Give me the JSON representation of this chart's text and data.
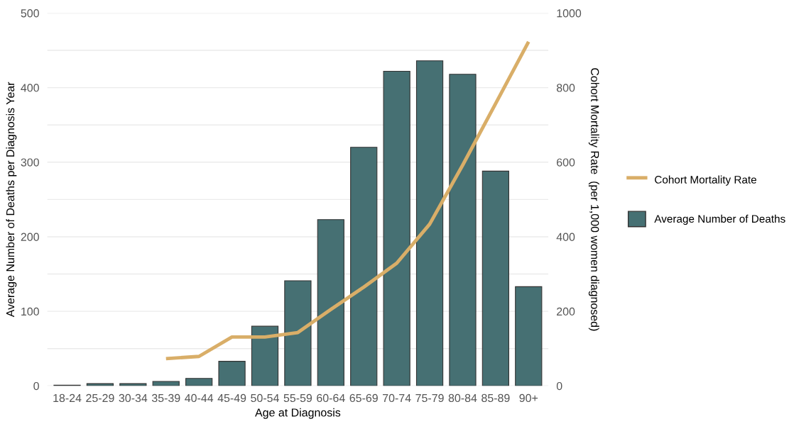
{
  "chart_data": {
    "type": "bar",
    "xlabel": "Age at Diagnosis",
    "ylabel": "Average Number of Deaths per Diagnosis Year",
    "y2label": "Cohort Mortality Rate  (per 1,000 women diagnosed)",
    "categories": [
      "18-24",
      "25-29",
      "30-34",
      "35-39",
      "40-44",
      "45-49",
      "50-54",
      "55-59",
      "60-64",
      "65-69",
      "70-74",
      "75-79",
      "80-84",
      "85-89",
      "90+"
    ],
    "series": [
      {
        "name": "Average Number of Deaths",
        "color": "#467073",
        "values": [
          1,
          3,
          3,
          6,
          10,
          33,
          80,
          141,
          223,
          320,
          422,
          436,
          418,
          288,
          133
        ]
      },
      {
        "name": "Cohort Mortality Rate",
        "type": "line",
        "axis": "y2",
        "color": "#d9ae68",
        "values": [
          null,
          null,
          null,
          73,
          79,
          131,
          131,
          143,
          205,
          265,
          329,
          434,
          592,
          757,
          923
        ]
      }
    ],
    "ylim": [
      0,
      500
    ],
    "yticks": [
      0,
      {
        "value": 50,
        "label": null
      },
      100,
      {
        "value": 150,
        "label": null
      },
      200,
      {
        "value": 250,
        "label": null
      },
      300,
      {
        "value": 350,
        "label": null
      },
      400,
      {
        "value": 450,
        "label": null
      },
      500
    ],
    "y2lim": [
      0,
      1000
    ],
    "y2ticks": [
      0,
      200,
      400,
      600,
      800,
      1000
    ],
    "grid": "y",
    "legend": "right",
    "marker": "none",
    "line_style": "solid"
  }
}
